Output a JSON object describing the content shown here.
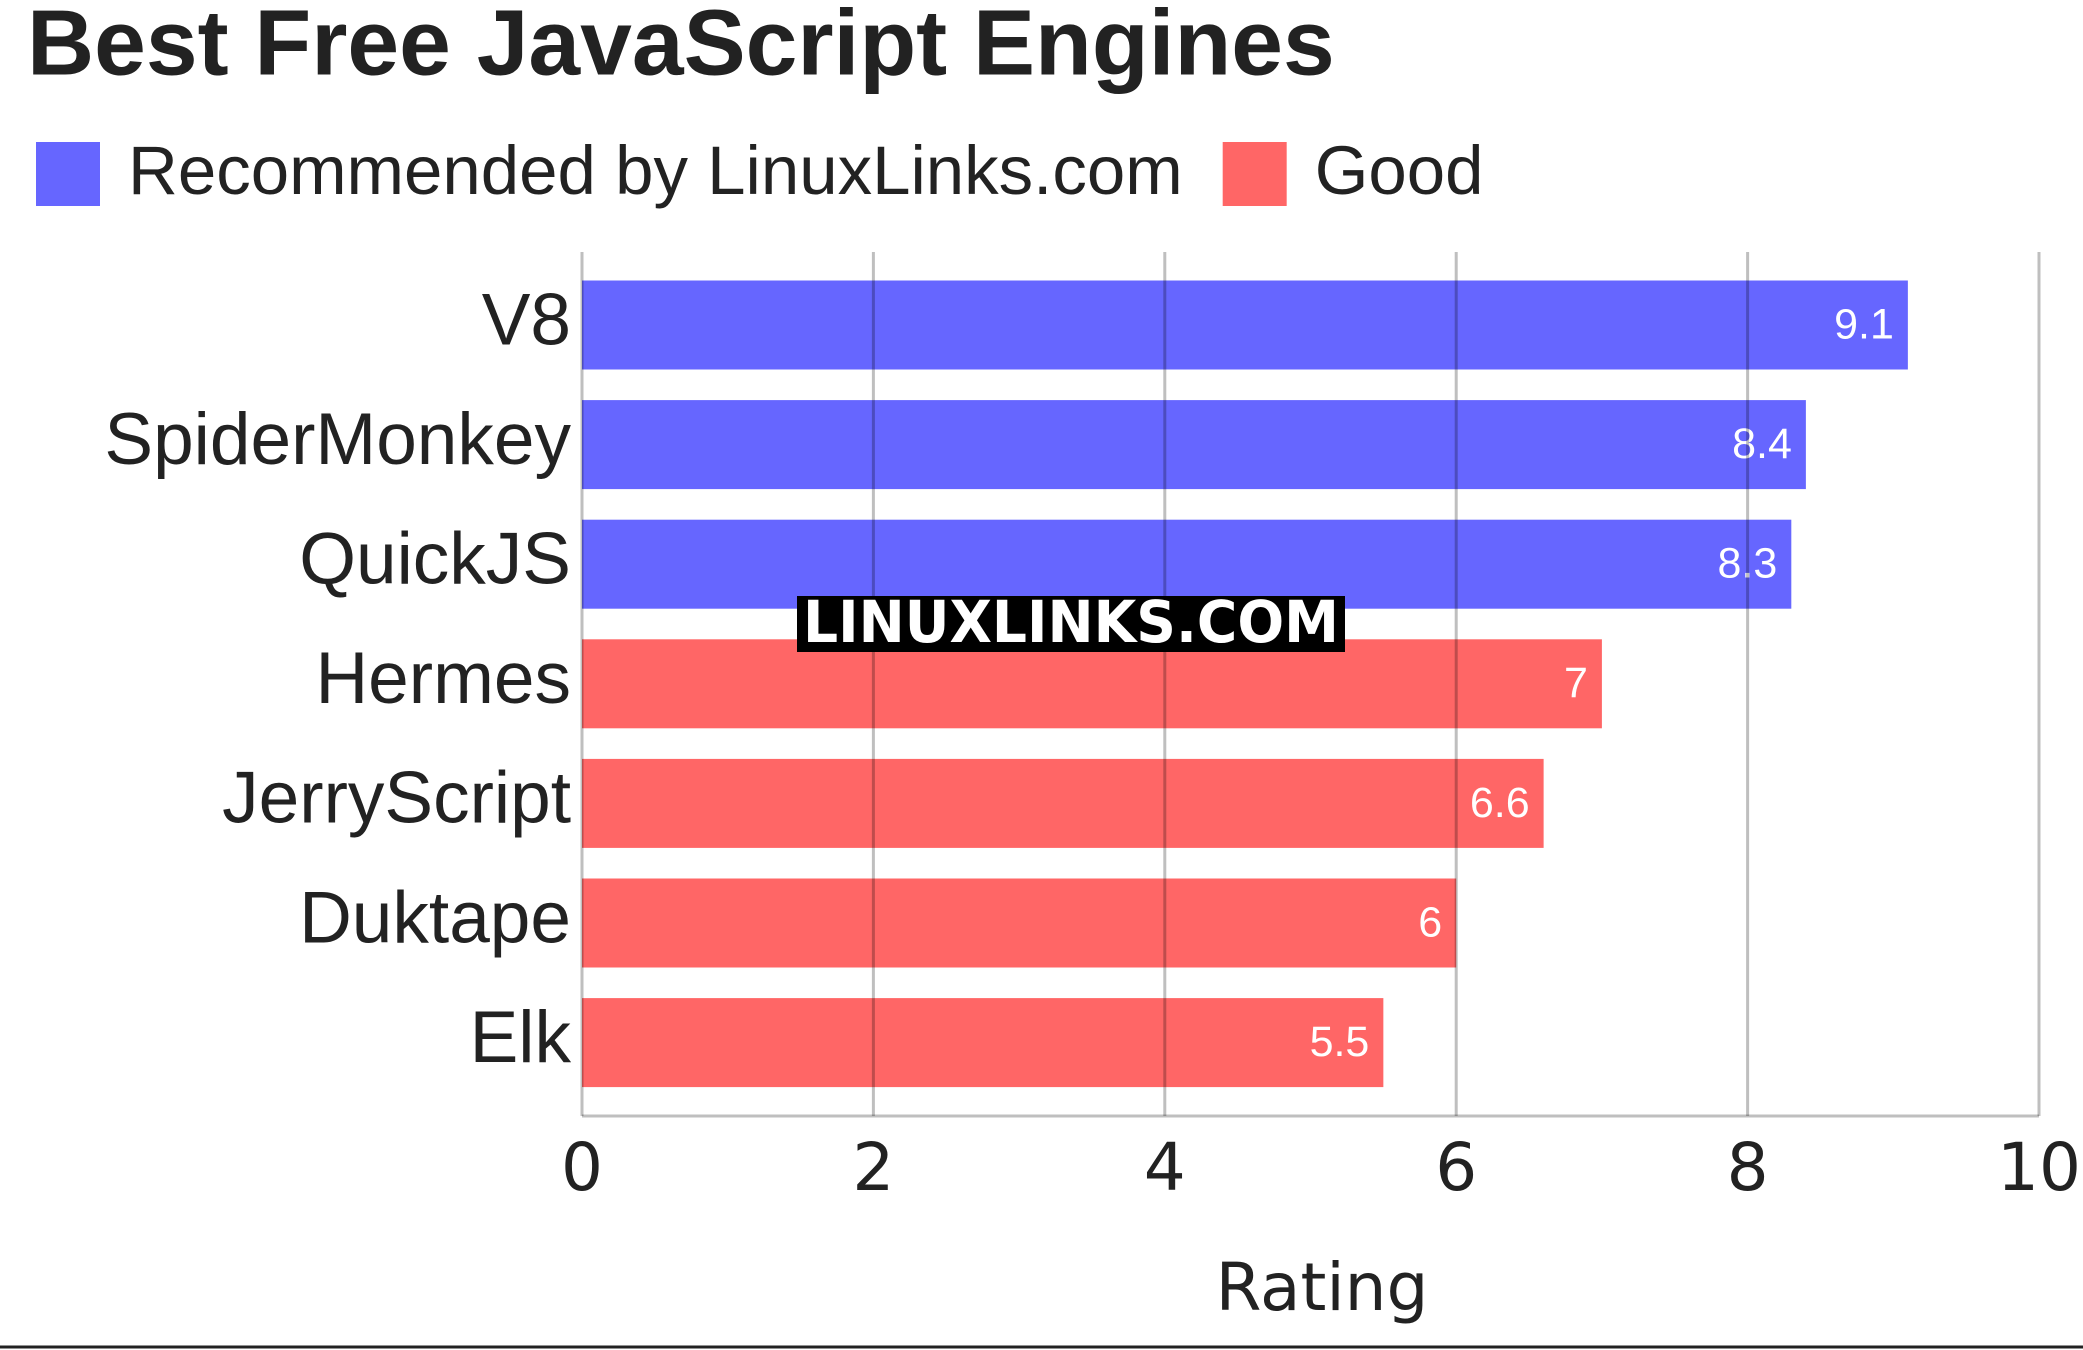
{
  "chart_data": {
    "type": "bar",
    "orientation": "horizontal",
    "title": "Best Free JavaScript Engines",
    "categories": [
      "V8",
      "SpiderMonkey",
      "QuickJS",
      "Hermes",
      "JerryScript",
      "Duktape",
      "Elk"
    ],
    "series": [
      {
        "name": "Recommended by LinuxLinks.com",
        "color": "#6666ff",
        "values": [
          9.1,
          8.4,
          8.3,
          null,
          null,
          null,
          null
        ]
      },
      {
        "name": "Good",
        "color": "#ff6666",
        "values": [
          null,
          null,
          null,
          7,
          6.6,
          6,
          5.5
        ]
      }
    ],
    "xlabel": "Rating",
    "xlim": [
      0,
      10
    ],
    "xticks": [
      0,
      2,
      4,
      6,
      8,
      10
    ],
    "grid": true,
    "legend": "top-left",
    "watermark": "LINUXLINKS.COM"
  }
}
